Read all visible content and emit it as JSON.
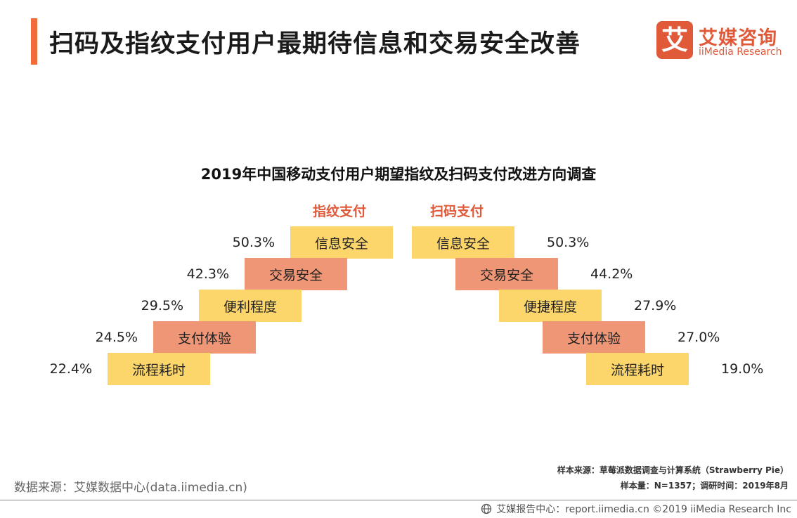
{
  "page": {
    "title": "扫码及指纹支付用户最期待信息和交易安全改善",
    "accent_color": "#f26b3a"
  },
  "logo": {
    "mark": "艾",
    "name_cn": "艾媒咨询",
    "name_en": "iiMedia Research",
    "color": "#e05a3a"
  },
  "chart_data": {
    "type": "bar",
    "title": "2019年中国移动支付用户期望指纹及扫码支付改进方向调查",
    "colors": {
      "yellow": "#fdd66b",
      "orange": "#ef9676"
    },
    "left": {
      "name": "指纹支付",
      "categories": [
        "信息安全",
        "交易安全",
        "便利程度",
        "支付体验",
        "流程耗时"
      ],
      "values": [
        50.3,
        42.3,
        29.5,
        24.5,
        22.4
      ],
      "labels": [
        "50.3%",
        "42.3%",
        "29.5%",
        "24.5%",
        "22.4%"
      ]
    },
    "right": {
      "name": "扫码支付",
      "categories": [
        "信息安全",
        "交易安全",
        "便捷程度",
        "支付体验",
        "流程耗时"
      ],
      "values": [
        50.3,
        44.2,
        27.9,
        27.0,
        19.0
      ],
      "labels": [
        "50.3%",
        "44.2%",
        "27.9%",
        "27.0%",
        "19.0%"
      ]
    }
  },
  "source": {
    "data_source": "数据来源：艾媒数据中心(data.iimedia.cn)",
    "sample_source": "样本来源：草莓派数据调查与计算系统（Strawberry Pie）",
    "sample_size": "样本量：N=1357；调研时间：2019年8月"
  },
  "footer": {
    "text": "艾媒报告中心：report.iimedia.cn  ©2019  iiMedia Research Inc"
  }
}
